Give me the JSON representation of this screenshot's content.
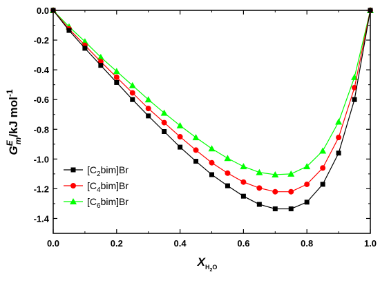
{
  "chart_data": {
    "type": "line",
    "ylabel": {
      "base": "G",
      "sup1": "E",
      "sub1": "m",
      "unit": "/kJ mol",
      "sup2": "-1"
    },
    "xlabel": {
      "base": "X",
      "sub": "H",
      "sub2": "2",
      "sub3": "O"
    },
    "xlim": [
      0.0,
      1.0
    ],
    "ylim": [
      -1.5,
      0.0
    ],
    "xticks": [
      0.0,
      0.2,
      0.4,
      0.6,
      0.8,
      1.0
    ],
    "xtick_labels": [
      "0.0",
      "0.2",
      "0.4",
      "0.6",
      "0.8",
      "1.0"
    ],
    "yticks": [
      0.0,
      -0.2,
      -0.4,
      -0.6,
      -0.8,
      -1.0,
      -1.2,
      -1.4
    ],
    "ytick_labels": [
      "0.0",
      "-0.2",
      "-0.4",
      "-0.6",
      "-0.8",
      "-1.0",
      "-1.2",
      "-1.4"
    ],
    "grid": false,
    "legend_position": "bottom-left",
    "x": [
      0.0,
      0.05,
      0.1,
      0.15,
      0.2,
      0.25,
      0.3,
      0.35,
      0.4,
      0.45,
      0.5,
      0.55,
      0.6,
      0.65,
      0.7,
      0.75,
      0.8,
      0.85,
      0.9,
      0.95,
      1.0
    ],
    "series": [
      {
        "name": {
          "pre": "[C",
          "sub": "2",
          "post": "bim]Br"
        },
        "color": "#000000",
        "marker": "square",
        "values": [
          0.0,
          -0.135,
          -0.255,
          -0.37,
          -0.485,
          -0.6,
          -0.71,
          -0.815,
          -0.92,
          -1.015,
          -1.105,
          -1.18,
          -1.25,
          -1.305,
          -1.335,
          -1.335,
          -1.29,
          -1.17,
          -0.96,
          -0.6,
          0.0
        ]
      },
      {
        "name": {
          "pre": "[C",
          "sub": "4",
          "post": "bim]Br"
        },
        "color": "#ff0000",
        "marker": "circle",
        "values": [
          0.0,
          -0.125,
          -0.235,
          -0.345,
          -0.45,
          -0.555,
          -0.66,
          -0.755,
          -0.85,
          -0.94,
          -1.025,
          -1.095,
          -1.155,
          -1.195,
          -1.22,
          -1.22,
          -1.17,
          -1.06,
          -0.855,
          -0.52,
          0.0
        ]
      },
      {
        "name": {
          "pre": "[C",
          "sub": "6",
          "post": "bim]Br"
        },
        "color": "#00ff00",
        "marker": "triangle",
        "values": [
          0.0,
          -0.11,
          -0.21,
          -0.315,
          -0.41,
          -0.505,
          -0.6,
          -0.69,
          -0.775,
          -0.855,
          -0.93,
          -0.995,
          -1.05,
          -1.09,
          -1.105,
          -1.1,
          -1.05,
          -0.945,
          -0.75,
          -0.45,
          0.0
        ]
      }
    ]
  }
}
